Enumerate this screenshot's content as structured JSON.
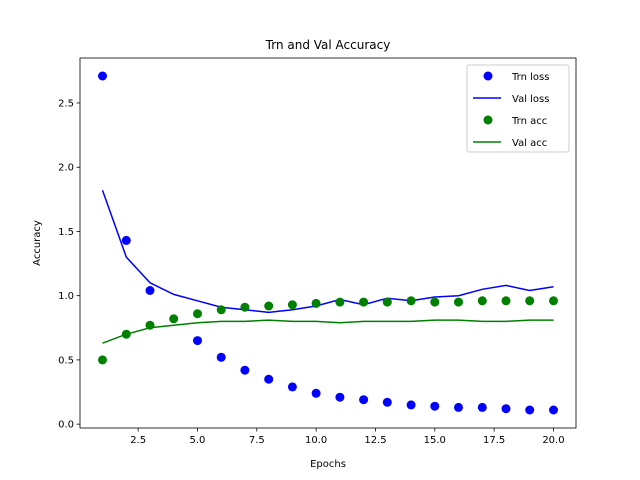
{
  "chart_data": {
    "type": "scatter",
    "title": "Trn and Val Accuracy",
    "xlabel": "Epochs",
    "ylabel": "Accuracy",
    "xlim": [
      0.05,
      20.95
    ],
    "ylim": [
      -0.03,
      2.85
    ],
    "xticks": [
      2.5,
      5.0,
      7.5,
      10.0,
      12.5,
      15.0,
      17.5,
      20.0
    ],
    "xtick_labels": [
      "2.5",
      "5.0",
      "7.5",
      "10.0",
      "12.5",
      "15.0",
      "17.5",
      "20.0"
    ],
    "yticks": [
      0.0,
      0.5,
      1.0,
      1.5,
      2.0,
      2.5
    ],
    "ytick_labels": [
      "0.0",
      "0.5",
      "1.0",
      "1.5",
      "2.0",
      "2.5"
    ],
    "grid": false,
    "legend_position": "top-right",
    "x": [
      1,
      2,
      3,
      4,
      5,
      6,
      7,
      8,
      9,
      10,
      11,
      12,
      13,
      14,
      15,
      16,
      17,
      18,
      19,
      20
    ],
    "series": [
      {
        "name": "Trn loss",
        "style": "points",
        "color": "#0000ff",
        "values": [
          2.71,
          1.43,
          1.04,
          null,
          0.65,
          0.52,
          0.42,
          0.35,
          0.29,
          0.24,
          0.21,
          0.19,
          0.17,
          0.15,
          0.14,
          0.13,
          0.13,
          0.12,
          0.11,
          0.11
        ]
      },
      {
        "name": "Val loss",
        "style": "line",
        "color": "#0000ff",
        "values": [
          1.82,
          1.3,
          1.1,
          1.01,
          0.96,
          0.91,
          0.89,
          0.87,
          0.89,
          0.92,
          0.97,
          0.93,
          0.98,
          0.96,
          0.99,
          1.0,
          1.05,
          1.08,
          1.04,
          1.07
        ]
      },
      {
        "name": "Trn acc",
        "style": "points",
        "color": "#008000",
        "values": [
          0.5,
          0.7,
          0.77,
          0.82,
          0.86,
          0.89,
          0.91,
          0.92,
          0.93,
          0.94,
          0.95,
          0.95,
          0.95,
          0.96,
          0.95,
          0.95,
          0.96,
          0.96,
          0.96,
          0.96
        ]
      },
      {
        "name": "Val acc",
        "style": "line",
        "color": "#008000",
        "values": [
          0.63,
          0.7,
          0.75,
          0.77,
          0.79,
          0.8,
          0.8,
          0.81,
          0.8,
          0.8,
          0.79,
          0.8,
          0.8,
          0.8,
          0.81,
          0.81,
          0.8,
          0.8,
          0.81,
          0.81
        ]
      }
    ]
  }
}
